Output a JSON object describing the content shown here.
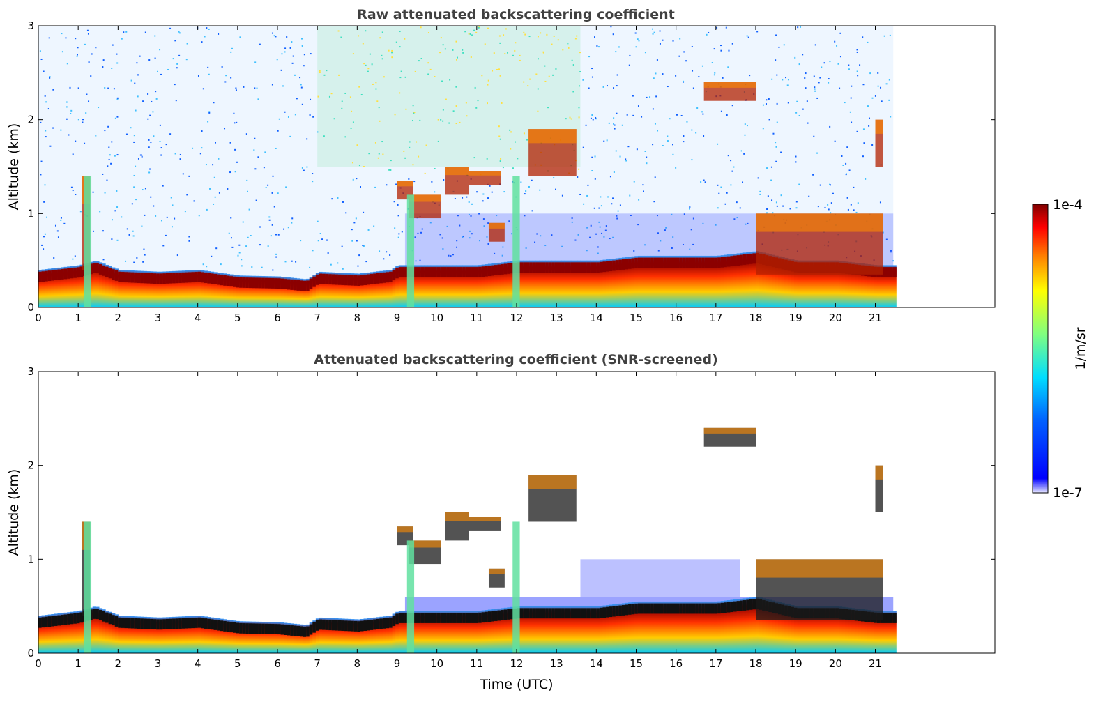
{
  "chart_data": [
    {
      "type": "heatmap",
      "title": "Raw attenuated backscattering coefficient",
      "xlabel": "",
      "ylabel": "Altitude (km)",
      "xlim": [
        0,
        24
      ],
      "ylim": [
        0,
        3
      ],
      "xticks": [
        "0",
        "1",
        "2",
        "3",
        "4",
        "5",
        "6",
        "7",
        "8",
        "9",
        "10",
        "11",
        "12",
        "13",
        "14",
        "15",
        "16",
        "17",
        "18",
        "19",
        "20",
        "21"
      ],
      "yticks": [
        "0",
        "1",
        "2",
        "3"
      ],
      "data_extent_hours": 21.45,
      "boundary_layer_top_km": [
        [
          0,
          0.4
        ],
        [
          1,
          0.45
        ],
        [
          1.4,
          0.5
        ],
        [
          2,
          0.4
        ],
        [
          3,
          0.38
        ],
        [
          4,
          0.4
        ],
        [
          5,
          0.34
        ],
        [
          6,
          0.33
        ],
        [
          6.7,
          0.3
        ],
        [
          7,
          0.38
        ],
        [
          8,
          0.36
        ],
        [
          8.8,
          0.4
        ],
        [
          9,
          0.45
        ],
        [
          10,
          0.45
        ],
        [
          11,
          0.45
        ],
        [
          12,
          0.5
        ],
        [
          13,
          0.5
        ],
        [
          14,
          0.5
        ],
        [
          15,
          0.55
        ],
        [
          16,
          0.55
        ],
        [
          17,
          0.55
        ],
        [
          18,
          0.6
        ],
        [
          19,
          0.5
        ],
        [
          20,
          0.5
        ],
        [
          21,
          0.45
        ],
        [
          21.45,
          0.45
        ]
      ],
      "cloud_layers": [
        {
          "x": [
            1.1,
            1.3
          ],
          "y": [
            0.4,
            1.4
          ]
        },
        {
          "x": [
            9.0,
            9.4
          ],
          "y": [
            1.15,
            1.35
          ]
        },
        {
          "x": [
            9.3,
            10.1
          ],
          "y": [
            0.95,
            1.2
          ]
        },
        {
          "x": [
            10.2,
            10.8
          ],
          "y": [
            1.2,
            1.5
          ]
        },
        {
          "x": [
            10.8,
            11.6
          ],
          "y": [
            1.3,
            1.45
          ]
        },
        {
          "x": [
            11.3,
            11.7
          ],
          "y": [
            0.7,
            0.9
          ]
        },
        {
          "x": [
            12.3,
            13.5
          ],
          "y": [
            1.4,
            1.9
          ]
        },
        {
          "x": [
            16.7,
            18.0
          ],
          "y": [
            2.2,
            2.4
          ]
        },
        {
          "x": [
            18.0,
            21.2
          ],
          "y": [
            0.35,
            1.0
          ]
        },
        {
          "x": [
            21.0,
            21.2
          ],
          "y": [
            1.5,
            2.0
          ]
        }
      ]
    },
    {
      "type": "heatmap",
      "title": "Attenuated backscattering coefficient (SNR-screened)",
      "xlabel": "Time (UTC)",
      "ylabel": "Altitude (km)",
      "xlim": [
        0,
        24
      ],
      "ylim": [
        0,
        3
      ],
      "xticks": [
        "0",
        "1",
        "2",
        "3",
        "4",
        "5",
        "6",
        "7",
        "8",
        "9",
        "10",
        "11",
        "12",
        "13",
        "14",
        "15",
        "16",
        "17",
        "18",
        "19",
        "20",
        "21"
      ],
      "yticks": [
        "0",
        "1",
        "2",
        "3"
      ],
      "data_extent_hours": 21.45
    }
  ],
  "colorbar": {
    "label": "1/m/sr",
    "max_label": "1e-4",
    "min_label": "1e-7",
    "colormap": "jet",
    "colors": [
      "#e6e6ff",
      "#0000ff",
      "#0080ff",
      "#00ffff",
      "#80ff80",
      "#ffff00",
      "#ff8000",
      "#ff0000",
      "#800000"
    ]
  }
}
